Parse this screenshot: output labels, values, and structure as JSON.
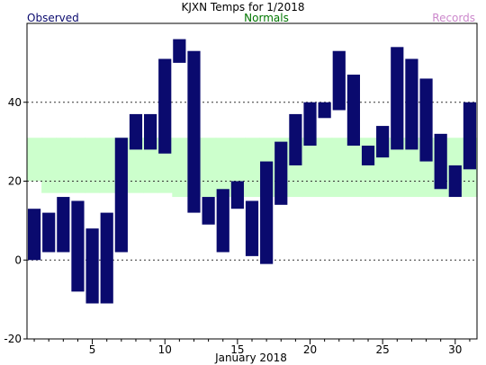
{
  "colors": {
    "observed": "#0a0a6e",
    "normals_band": "#ccffcc",
    "normals_legend": "#007700",
    "records_legend": "#cc88cc",
    "grid": "#333333",
    "axis": "#000000"
  },
  "chart_data": {
    "type": "bar",
    "title": "KJXN Temps for 1/2018",
    "xlabel": "January 2018",
    "ylabel": "",
    "xlim": [
      0.5,
      31.5
    ],
    "ylim": [
      -20,
      60
    ],
    "yticks": [
      -20,
      0,
      20,
      40
    ],
    "xticks": [
      5,
      10,
      15,
      20,
      25,
      30
    ],
    "grid": "dashed horizontal at 0, 20, 40",
    "legend": {
      "observed": "Observed",
      "normals": "Normals",
      "records": "Records"
    },
    "x": [
      1,
      2,
      3,
      4,
      5,
      6,
      7,
      8,
      9,
      10,
      11,
      12,
      13,
      14,
      15,
      16,
      17,
      18,
      19,
      20,
      21,
      22,
      23,
      24,
      25,
      26,
      27,
      28,
      29,
      30,
      31
    ],
    "series": [
      {
        "name": "Observed",
        "high": [
          13,
          12,
          16,
          15,
          8,
          12,
          31,
          37,
          37,
          51,
          56,
          53,
          16,
          18,
          20,
          15,
          25,
          30,
          37,
          40,
          40,
          53,
          47,
          29,
          34,
          54,
          51,
          46,
          32,
          24,
          40
        ],
        "low": [
          0,
          2,
          2,
          -8,
          -11,
          -11,
          2,
          28,
          28,
          27,
          50,
          12,
          9,
          2,
          13,
          1,
          -1,
          14,
          24,
          29,
          36,
          38,
          29,
          24,
          26,
          28,
          28,
          25,
          18,
          16,
          23
        ]
      },
      {
        "name": "Normals",
        "high": [
          31,
          31,
          31,
          31,
          31,
          31,
          31,
          31,
          31,
          31,
          31,
          31,
          31,
          31,
          31,
          31,
          31,
          31,
          31,
          31,
          31,
          31,
          31,
          31,
          31,
          31,
          31,
          31,
          31,
          31,
          31
        ],
        "low": [
          20,
          17,
          17,
          17,
          17,
          17,
          17,
          17,
          17,
          17,
          16,
          16,
          16,
          16,
          16,
          16,
          16,
          16,
          16,
          16,
          16,
          16,
          16,
          16,
          16,
          16,
          16,
          16,
          16,
          16,
          16
        ]
      }
    ]
  }
}
